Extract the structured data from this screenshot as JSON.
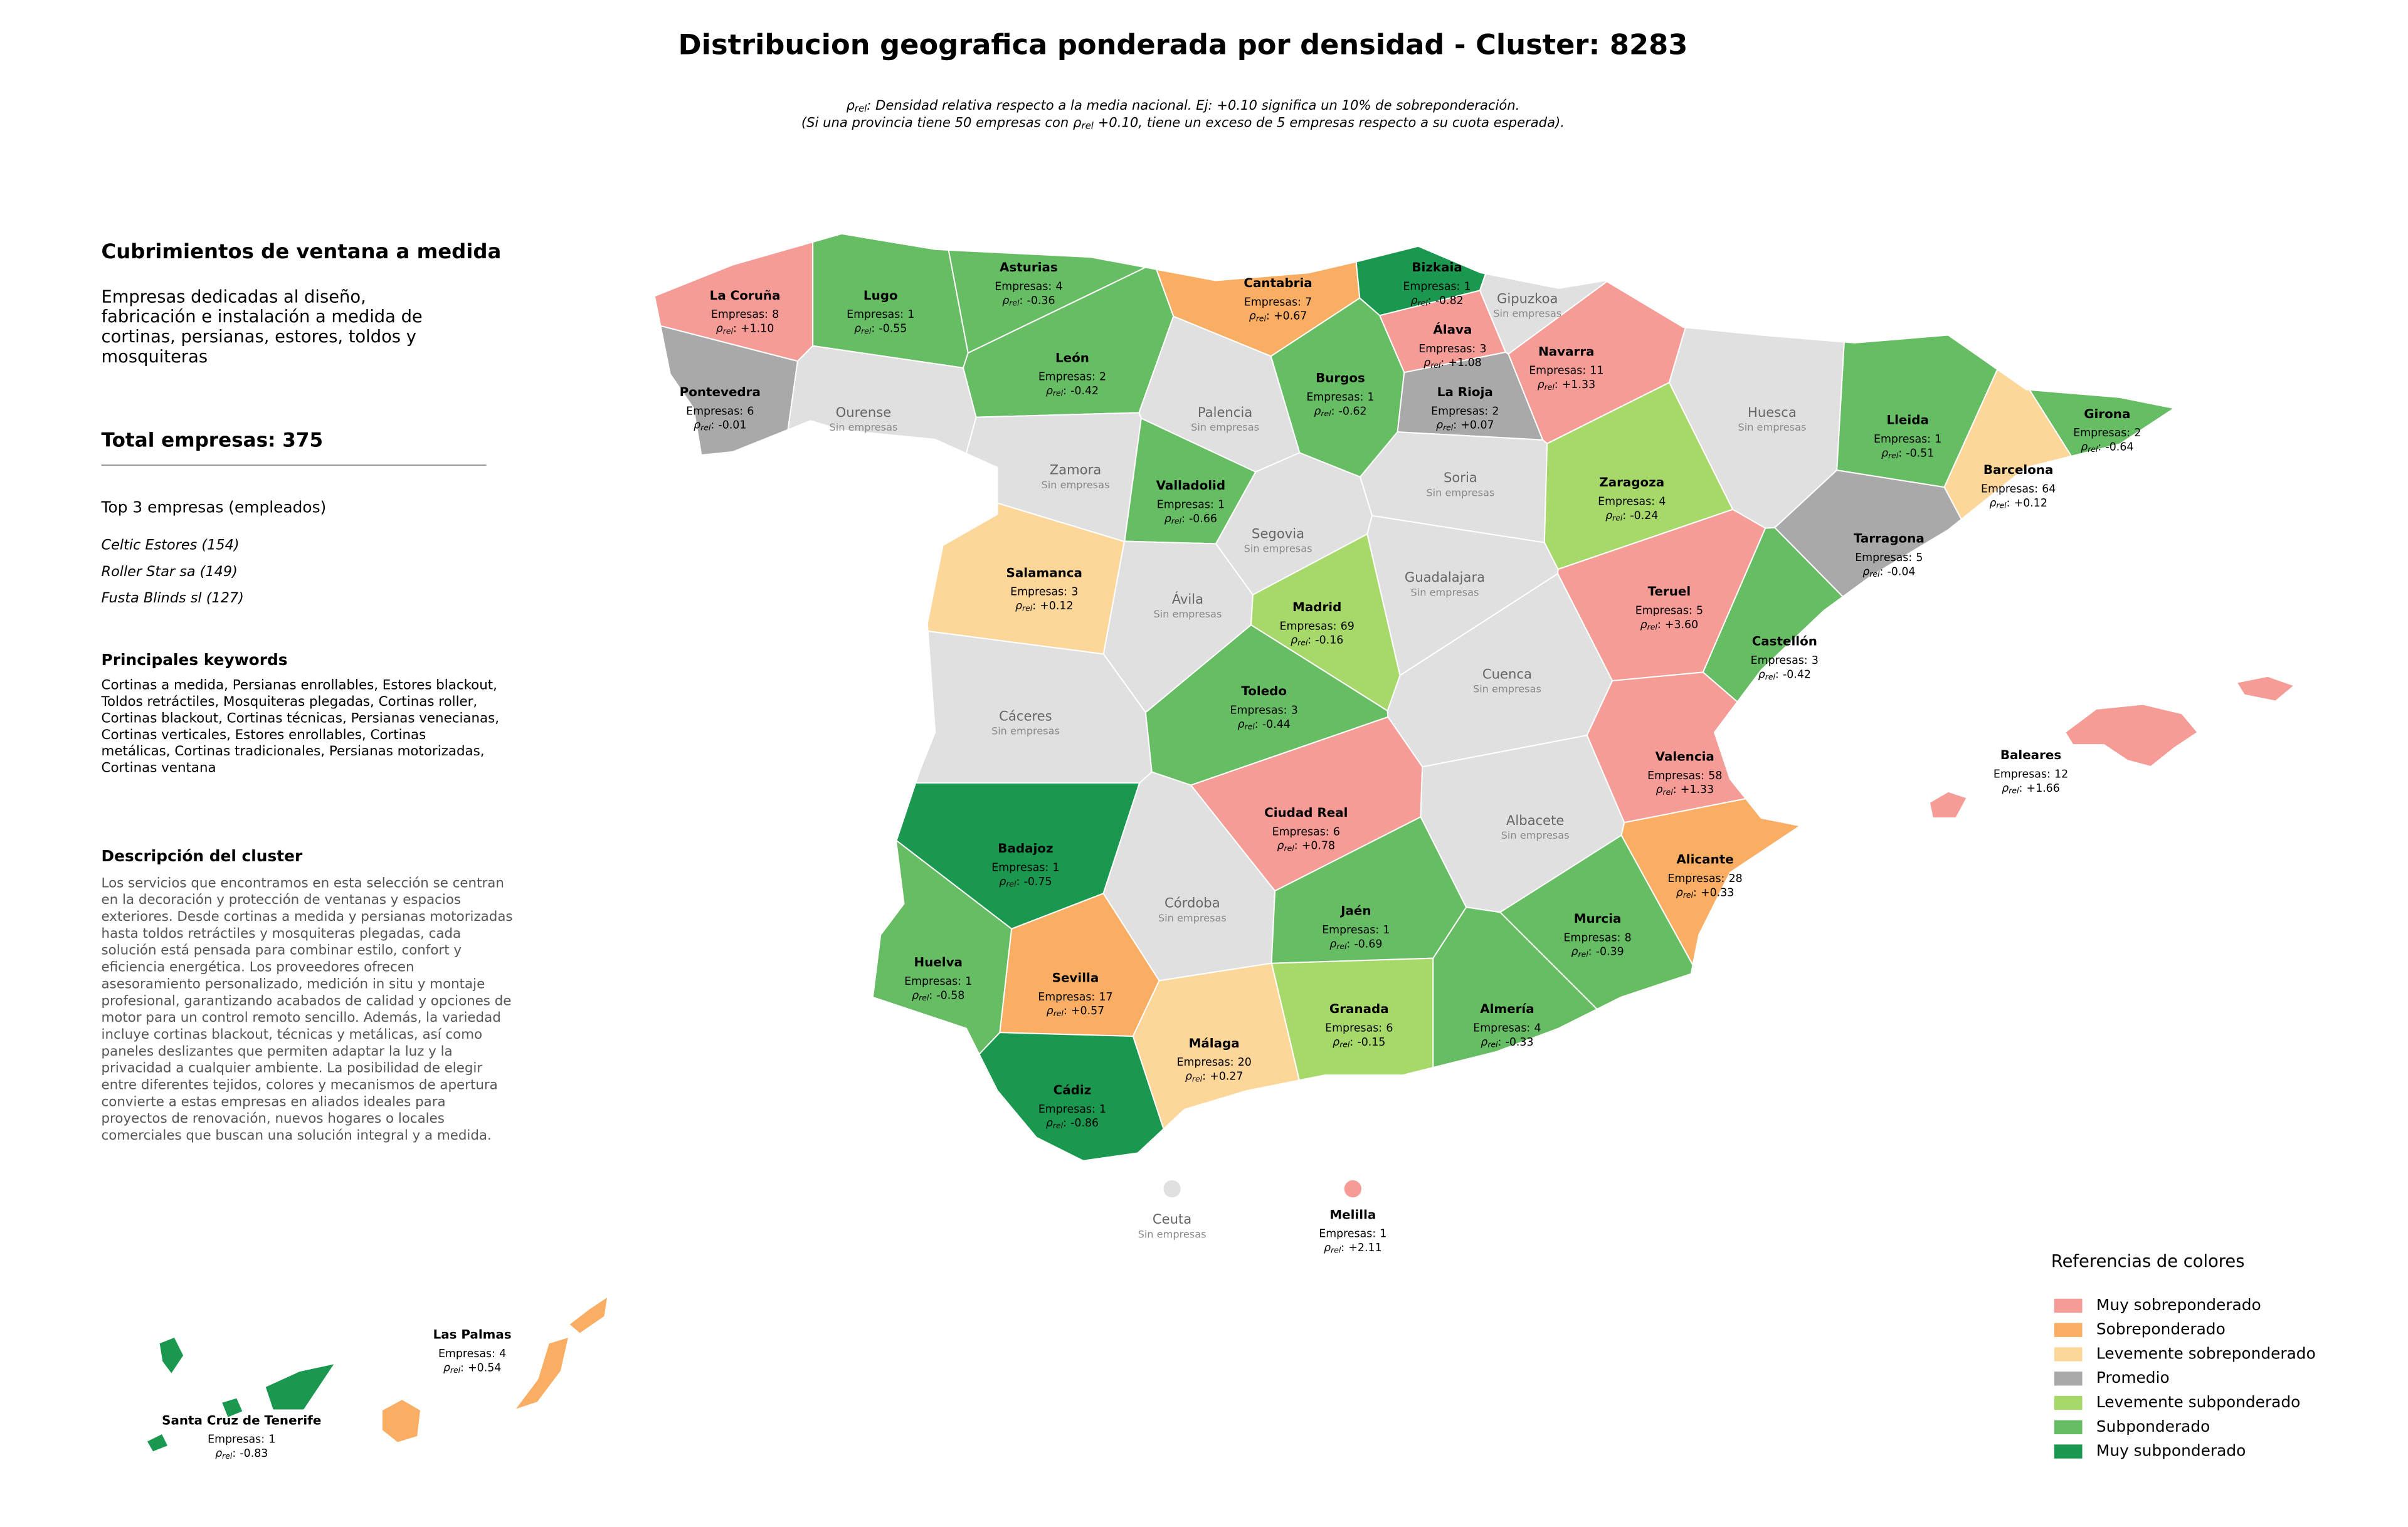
{
  "title": "Distribucion geografica ponderada por densidad - Cluster: 8283",
  "notes": [
    {
      "symbol": "ρ",
      "sub": "rel",
      "after": ": Densidad relativa respecto a la media nacional. Ej: +0.10 significa un 10% de sobreponderación."
    },
    {
      "before": "(Si una provincia tiene 50 empresas con ",
      "symbol": "ρ",
      "sub": "rel",
      "after": " +0.10, tiene un exceso de 5 empresas respecto a su cuota esperada)."
    }
  ],
  "sidebar": {
    "title": "Cubrimientos de ventana a medida",
    "summary": [
      "Empresas dedicadas al diseño,",
      "fabricación e instalación a medida de",
      "cortinas, persianas, estores, toldos y",
      "mosquiteras"
    ],
    "total": "Total empresas: 375",
    "top_title": "Top 3 empresas (empleados)",
    "top": [
      "Celtic Estores (154)",
      "Roller Star sa (149)",
      "Fusta Blinds sl (127)"
    ],
    "keywords_title": "Principales keywords",
    "keywords": [
      "Cortinas a medida, Persianas enrollables, Estores blackout,",
      "Toldos retráctiles, Mosquiteras plegadas, Cortinas roller,",
      "Cortinas blackout, Cortinas técnicas, Persianas venecianas,",
      "Cortinas verticales, Estores enrollables, Cortinas",
      "metálicas, Cortinas tradicionales, Persianas motorizadas,",
      "Cortinas ventana"
    ],
    "description_title": "Descripción del cluster",
    "description": [
      "Los servicios que encontramos en esta selección se centran",
      "en la decoración y protección de ventanas y espacios",
      "exteriores. Desde cortinas a medida y persianas motorizadas",
      "hasta toldos retráctiles y mosquiteras plegadas, cada",
      "solución está pensada para combinar estilo, confort y",
      "eficiencia energética. Los proveedores ofrecen",
      "asesoramiento personalizado, medición in situ y montaje",
      "profesional, garantizando acabados de calidad y opciones de",
      "motor para un control remoto sencillo. Además, la variedad",
      "incluye cortinas blackout, técnicas y metálicas, así como",
      "paneles deslizantes que permiten adaptar la luz y la",
      "privacidad a cualquier ambiente. La posibilidad de elegir",
      "entre diferentes tejidos, colores y mecanismos de apertura",
      "convierte a estas empresas en aliados ideales para",
      "proyectos de renovación, nuevos hogares o locales",
      "comerciales que buscan una solución integral y a medida."
    ]
  },
  "map_data": {
    "labels": {
      "companies": "Empresas:",
      "rho": "ρ",
      "rho_sub": "rel",
      "rho_colon": ":",
      "none": "Sin empresas"
    },
    "no_data_color": "#e0e0e0",
    "legend_title": "Referencias de colores",
    "legend": [
      {
        "name": "Muy sobreponderado",
        "color": "#f59c97"
      },
      {
        "name": "Sobreponderado",
        "color": "#f9ae63"
      },
      {
        "name": "Levemente sobreponderado",
        "color": "#fdd699"
      },
      {
        "name": "Promedio",
        "color": "#a9a9a9"
      },
      {
        "name": "Levemente subponderado",
        "color": "#a6d96a"
      },
      {
        "name": "Subponderado",
        "color": "#66bd63"
      },
      {
        "name": "Muy subponderado",
        "color": "#1a9850"
      }
    ],
    "provinces": [
      {
        "name": "La Coruña",
        "companies": 8,
        "rho": 1.1,
        "rho_label": "+1.10",
        "level": 0
      },
      {
        "name": "Lugo",
        "companies": 1,
        "rho": -0.55,
        "rho_label": "-0.55",
        "level": 5
      },
      {
        "name": "Asturias",
        "companies": 4,
        "rho": -0.36,
        "rho_label": "-0.36",
        "level": 5
      },
      {
        "name": "Cantabria",
        "companies": 7,
        "rho": 0.67,
        "rho_label": "+0.67",
        "level": 1
      },
      {
        "name": "Bizkaia",
        "companies": 1,
        "rho": -0.82,
        "rho_label": "-0.82",
        "level": 6
      },
      {
        "name": "Gipuzkoa"
      },
      {
        "name": "Álava",
        "companies": 3,
        "rho": 1.08,
        "rho_label": "+1.08",
        "level": 0
      },
      {
        "name": "Navarra",
        "companies": 11,
        "rho": 1.33,
        "rho_label": "+1.33",
        "level": 0
      },
      {
        "name": "Pontevedra",
        "companies": 6,
        "rho": -0.01,
        "rho_label": "-0.01",
        "level": 3
      },
      {
        "name": "Ourense"
      },
      {
        "name": "León",
        "companies": 2,
        "rho": -0.42,
        "rho_label": "-0.42",
        "level": 5
      },
      {
        "name": "Palencia"
      },
      {
        "name": "Burgos",
        "companies": 1,
        "rho": -0.62,
        "rho_label": "-0.62",
        "level": 5
      },
      {
        "name": "La Rioja",
        "companies": 2,
        "rho": 0.07,
        "rho_label": "+0.07",
        "level": 3
      },
      {
        "name": "Huesca"
      },
      {
        "name": "Lleida",
        "companies": 1,
        "rho": -0.51,
        "rho_label": "-0.51",
        "level": 5
      },
      {
        "name": "Girona",
        "companies": 2,
        "rho": -0.64,
        "rho_label": "-0.64",
        "level": 5
      },
      {
        "name": "Zamora"
      },
      {
        "name": "Valladolid",
        "companies": 1,
        "rho": -0.66,
        "rho_label": "-0.66",
        "level": 5
      },
      {
        "name": "Soria"
      },
      {
        "name": "Zaragoza",
        "companies": 4,
        "rho": -0.24,
        "rho_label": "-0.24",
        "level": 4
      },
      {
        "name": "Barcelona",
        "companies": 64,
        "rho": 0.12,
        "rho_label": "+0.12",
        "level": 2
      },
      {
        "name": "Tarragona",
        "companies": 5,
        "rho": -0.04,
        "rho_label": "-0.04",
        "level": 3
      },
      {
        "name": "Salamanca",
        "companies": 3,
        "rho": 0.12,
        "rho_label": "+0.12",
        "level": 2
      },
      {
        "name": "Segovia"
      },
      {
        "name": "Ávila"
      },
      {
        "name": "Madrid",
        "companies": 69,
        "rho": -0.16,
        "rho_label": "-0.16",
        "level": 4
      },
      {
        "name": "Guadalajara"
      },
      {
        "name": "Teruel",
        "companies": 5,
        "rho": 3.6,
        "rho_label": "+3.60",
        "level": 0
      },
      {
        "name": "Castellón",
        "companies": 3,
        "rho": -0.42,
        "rho_label": "-0.42",
        "level": 5
      },
      {
        "name": "Cáceres"
      },
      {
        "name": "Toledo",
        "companies": 3,
        "rho": -0.44,
        "rho_label": "-0.44",
        "level": 5
      },
      {
        "name": "Cuenca"
      },
      {
        "name": "Valencia",
        "companies": 58,
        "rho": 1.33,
        "rho_label": "+1.33",
        "level": 0
      },
      {
        "name": "Badajoz",
        "companies": 1,
        "rho": -0.75,
        "rho_label": "-0.75",
        "level": 6
      },
      {
        "name": "Ciudad Real",
        "companies": 6,
        "rho": 0.78,
        "rho_label": "+0.78",
        "level": 0
      },
      {
        "name": "Albacete"
      },
      {
        "name": "Alicante",
        "companies": 28,
        "rho": 0.33,
        "rho_label": "+0.33",
        "level": 1
      },
      {
        "name": "Córdoba"
      },
      {
        "name": "Jaén",
        "companies": 1,
        "rho": -0.69,
        "rho_label": "-0.69",
        "level": 5
      },
      {
        "name": "Murcia",
        "companies": 8,
        "rho": -0.39,
        "rho_label": "-0.39",
        "level": 5
      },
      {
        "name": "Huelva",
        "companies": 1,
        "rho": -0.58,
        "rho_label": "-0.58",
        "level": 5
      },
      {
        "name": "Sevilla",
        "companies": 17,
        "rho": 0.57,
        "rho_label": "+0.57",
        "level": 1
      },
      {
        "name": "Granada",
        "companies": 6,
        "rho": -0.15,
        "rho_label": "-0.15",
        "level": 4
      },
      {
        "name": "Almería",
        "companies": 4,
        "rho": -0.33,
        "rho_label": "-0.33",
        "level": 5
      },
      {
        "name": "Málaga",
        "companies": 20,
        "rho": 0.27,
        "rho_label": "+0.27",
        "level": 2
      },
      {
        "name": "Cádiz",
        "companies": 1,
        "rho": -0.86,
        "rho_label": "-0.86",
        "level": 6
      },
      {
        "name": "Baleares",
        "companies": 12,
        "rho": 1.66,
        "rho_label": "+1.66",
        "level": 0
      },
      {
        "name": "Ceuta"
      },
      {
        "name": "Melilla",
        "companies": 1,
        "rho": 2.11,
        "rho_label": "+2.11",
        "level": 0
      },
      {
        "name": "Las Palmas",
        "companies": 4,
        "rho": 0.54,
        "rho_label": "+0.54",
        "level": 1
      },
      {
        "name": "Santa Cruz de Tenerife",
        "companies": 1,
        "rho": -0.83,
        "rho_label": "-0.83",
        "level": 6
      }
    ]
  }
}
